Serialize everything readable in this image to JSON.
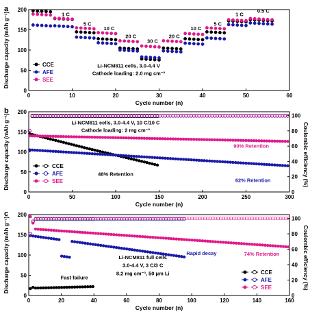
{
  "colors": {
    "cce": "#000000",
    "afe": "#1a1aa8",
    "see": "#e01a8a",
    "axis": "#000000"
  },
  "chart_data": [
    {
      "panel_label": "a",
      "type": "scatter",
      "xlabel": "Cycle number (n)",
      "ylabel": "Discharge capacity (mAh g⁻¹)",
      "xlim": [
        0,
        60
      ],
      "ylim": [
        0,
        200
      ],
      "xticks": [
        0,
        10,
        20,
        30,
        40,
        50,
        60
      ],
      "yticks": [
        0,
        50,
        100,
        150,
        200
      ],
      "rate_labels": [
        {
          "text": "0.5 C",
          "x": 3,
          "y": 192
        },
        {
          "text": "1 C",
          "x": 8.5,
          "y": 184
        },
        {
          "text": "5 C",
          "x": 13.5,
          "y": 160
        },
        {
          "text": "10 C",
          "x": 18.5,
          "y": 149
        },
        {
          "text": "20 C",
          "x": 23.5,
          "y": 130
        },
        {
          "text": "30 C",
          "x": 28.5,
          "y": 118
        },
        {
          "text": "20 C",
          "x": 33.5,
          "y": 130
        },
        {
          "text": "10 C",
          "x": 38.5,
          "y": 149
        },
        {
          "text": "5 C",
          "x": 43.5,
          "y": 160
        },
        {
          "text": "1 C",
          "x": 48.5,
          "y": 184
        },
        {
          "text": "0.5 C",
          "x": 54,
          "y": 192
        }
      ],
      "annotations": [
        {
          "text": "Li-NCM811 cells, 3.0-4.4 V",
          "x": 23,
          "y": 57
        },
        {
          "text": "Cathode loading: 2.0 mg cm⁻²",
          "x": 23,
          "y": 38
        }
      ],
      "segment_lengths": [
        5,
        5,
        5,
        5,
        5,
        5,
        5,
        5,
        5,
        5,
        6
      ],
      "series": [
        {
          "name": "CCE",
          "marker": "filled-circle",
          "color": "#000000",
          "segments": [
            197,
            178,
            145,
            128,
            105,
            78,
            105,
            128,
            145,
            172,
            175
          ]
        },
        {
          "name": "AFE",
          "marker": "filled-circle",
          "color": "#1a1aa8",
          "segments": [
            162,
            160,
            132,
            118,
            100,
            83,
            98,
            117,
            130,
            163,
            167
          ]
        },
        {
          "name": "SEE",
          "marker": "filled-circle",
          "color": "#e01a8a",
          "segments": [
            189,
            179,
            155,
            143,
            123,
            110,
            123,
            141,
            155,
            175,
            178
          ]
        }
      ],
      "legend": [
        "CCE",
        "AFE",
        "SEE"
      ]
    },
    {
      "panel_label": "b",
      "type": "scatter",
      "xlabel": "Cycle number (n)",
      "ylabel": "Discharge capacity (mAh g⁻¹)",
      "y2label": "Coulombic efficiency (%)",
      "xlim": [
        0,
        300
      ],
      "ylim": [
        0,
        200
      ],
      "y2lim": [
        0,
        105
      ],
      "xticks": [
        0,
        50,
        100,
        150,
        200,
        250,
        300
      ],
      "yticks": [
        0,
        50,
        100,
        150,
        200
      ],
      "y2ticks": [
        0,
        20,
        40,
        60,
        80,
        100
      ],
      "annotations": [
        {
          "text": "Li-NCM811 cells, 3.0-4.4 V, 10 C/10 C",
          "x": 100,
          "y": 168
        },
        {
          "text": "Cathode loading: 2 mg cm⁻²",
          "x": 100,
          "y": 150
        },
        {
          "text": "48% Retention",
          "x": 100,
          "y": 40
        },
        {
          "text": "62% Retention",
          "x": 258,
          "y": 25
        },
        {
          "text": "90% Retention",
          "x": 256,
          "y": 110
        }
      ],
      "series": [
        {
          "name": "CCE",
          "marker": "filled-circle",
          "color": "#000000",
          "x": [
            1,
            150
          ],
          "y": [
            143,
            66
          ]
        },
        {
          "name": "AFE",
          "marker": "filled-circle",
          "color": "#1a1aa8",
          "x": [
            1,
            300
          ],
          "y": [
            105,
            65
          ]
        },
        {
          "name": "SEE",
          "marker": "filled-circle",
          "color": "#e01a8a",
          "x": [
            1,
            300
          ],
          "y": [
            140,
            126
          ]
        },
        {
          "name": "CCE",
          "axis": "y2",
          "marker": "open-circle",
          "color": "#000000",
          "x": [
            1,
            150
          ],
          "y": [
            99,
            99
          ]
        },
        {
          "name": "AFE",
          "axis": "y2",
          "marker": "open-circle",
          "color": "#1a1aa8",
          "x": [
            1,
            300
          ],
          "y": [
            99.5,
            99.5
          ]
        },
        {
          "name": "SEE",
          "axis": "y2",
          "marker": "open-circle",
          "color": "#e01a8a",
          "x": [
            1,
            300
          ],
          "y": [
            100,
            100
          ]
        }
      ],
      "legend": [
        "CCE",
        "AFE",
        "SEE"
      ]
    },
    {
      "panel_label": "c",
      "type": "scatter",
      "xlabel": "Cycle number (n)",
      "ylabel": "Discharge capacity (mAh g⁻¹)",
      "y2label": "Coulombic efficiency (%)",
      "xlim": [
        0,
        160
      ],
      "ylim": [
        0,
        200
      ],
      "y2lim": [
        0,
        105
      ],
      "xticks": [
        0,
        20,
        40,
        60,
        80,
        100,
        120,
        140,
        160
      ],
      "yticks": [
        0,
        50,
        100,
        150,
        200
      ],
      "y2ticks": [
        0,
        20,
        40,
        60,
        80,
        100
      ],
      "annotations": [
        {
          "text": "Fast failure",
          "x": 28,
          "y": 40
        },
        {
          "text": "Rapid decay",
          "x": 106,
          "y": 100
        },
        {
          "text": "74% Retention",
          "x": 143,
          "y": 98
        },
        {
          "text": "Li-NCM811 full cells",
          "x": 70,
          "y": 90
        },
        {
          "text": "3.0-4.4 V, 3 C/3 C",
          "x": 70,
          "y": 70
        },
        {
          "text": "8.2 mg cm⁻³, 50 μm Li",
          "x": 70,
          "y": 50
        }
      ],
      "series": [
        {
          "name": "CCE",
          "marker": "filled-circle",
          "color": "#000000",
          "x": [
            1,
            40
          ],
          "y": [
            18,
            22
          ]
        },
        {
          "name": "AFE",
          "marker": "filled-circle",
          "color": "#1a1aa8",
          "x": [
            1,
            96
          ],
          "y": [
            148,
            95
          ]
        },
        {
          "name": "SEE",
          "marker": "filled-circle",
          "color": "#e01a8a",
          "x": [
            1,
            160
          ],
          "y": [
            165,
            120
          ]
        },
        {
          "name": "CCE",
          "axis": "y2",
          "marker": "open-circle",
          "color": "#000000",
          "x": [
            1,
            40
          ],
          "y": [
            99,
            99
          ]
        },
        {
          "name": "AFE",
          "axis": "y2",
          "marker": "open-circle",
          "color": "#1a1aa8",
          "x": [
            1,
            96
          ],
          "y": [
            99,
            99
          ]
        },
        {
          "name": "SEE",
          "axis": "y2",
          "marker": "open-circle",
          "color": "#e01a8a",
          "x": [
            1,
            160
          ],
          "y": [
            100,
            100
          ]
        }
      ],
      "legend": [
        "CCE",
        "AFE",
        "SEE"
      ]
    }
  ]
}
